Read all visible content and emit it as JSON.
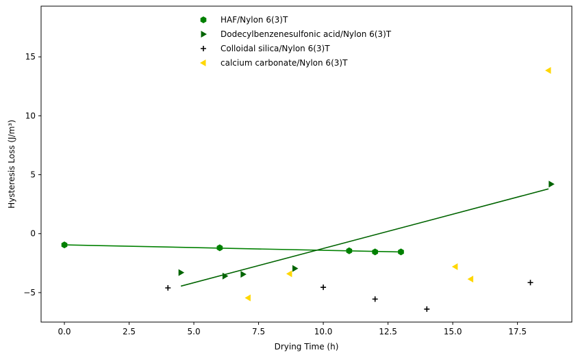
{
  "chart_data": {
    "type": "scatter",
    "title": "",
    "xlabel": "Drying Time (h)",
    "ylabel": "Hysteresis Loss (J/m³)",
    "xlim": [
      -0.9,
      19.6
    ],
    "ylim": [
      -7.5,
      19.3
    ],
    "xticks": [
      0.0,
      2.5,
      5.0,
      7.5,
      10.0,
      12.5,
      15.0,
      17.5
    ],
    "xtick_labels": [
      "0.0",
      "2.5",
      "5.0",
      "7.5",
      "10.0",
      "12.5",
      "15.0",
      "17.5"
    ],
    "yticks": [
      -5,
      0,
      5,
      10,
      15
    ],
    "ytick_labels": [
      "−5",
      "0",
      "5",
      "10",
      "15"
    ],
    "grid": false,
    "legend_position": "top-center",
    "series": [
      {
        "name": "HAF/Nylon 6(3)T",
        "marker": "hexagon",
        "color": "#008000",
        "points": [
          [
            0,
            -0.95
          ],
          [
            6,
            -1.2
          ],
          [
            11,
            -1.45
          ],
          [
            12,
            -1.55
          ],
          [
            13,
            -1.55
          ]
        ]
      },
      {
        "name": "Dodecylbenzenesulfonic acid/Nylon 6(3)T",
        "marker": "triangle-right",
        "color": "#006400",
        "points": [
          [
            4.5,
            -3.3
          ],
          [
            6.2,
            -3.6
          ],
          [
            6.9,
            -3.45
          ],
          [
            8.9,
            -2.95
          ],
          [
            18.8,
            4.2
          ]
        ]
      },
      {
        "name": "Colloidal silica/Nylon 6(3)T",
        "marker": "plus",
        "color": "#000000",
        "points": [
          [
            4,
            -4.6
          ],
          [
            10,
            -4.55
          ],
          [
            12,
            -5.55
          ],
          [
            14,
            -6.4
          ],
          [
            18,
            -4.15
          ]
        ]
      },
      {
        "name": "calcium carbonate/Nylon 6(3)T",
        "marker": "triangle-left",
        "color": "#FFD700",
        "points": [
          [
            7.1,
            -5.45
          ],
          [
            8.7,
            -3.4
          ],
          [
            15.1,
            -2.8
          ],
          [
            15.7,
            -3.85
          ],
          [
            18.7,
            13.85
          ]
        ]
      }
    ],
    "fit_lines": [
      {
        "color": "#008000",
        "points": [
          [
            0,
            -0.95
          ],
          [
            13,
            -1.55
          ]
        ]
      },
      {
        "color": "#006400",
        "points": [
          [
            4.5,
            -4.45
          ],
          [
            18.7,
            3.8
          ]
        ]
      }
    ]
  }
}
